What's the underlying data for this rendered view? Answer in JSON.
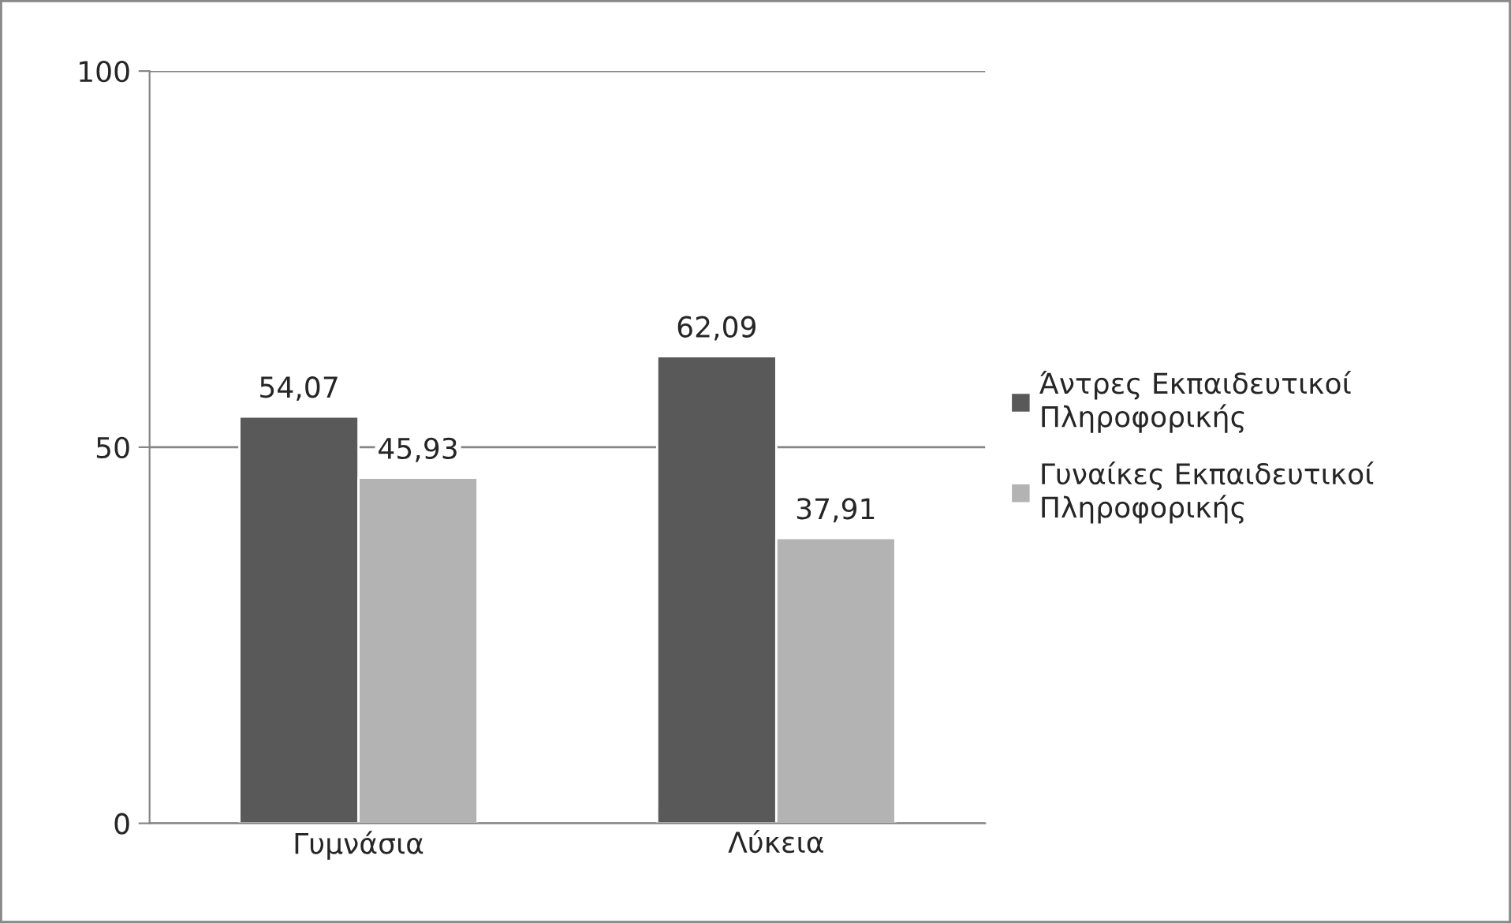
{
  "chart_data": {
    "type": "bar",
    "categories": [
      "Γυμνάσια",
      "Λύκεια"
    ],
    "series": [
      {
        "name": "Άντρες Εκπαιδευτικοί Πληροφορικής",
        "color": "#595959",
        "values": [
          54.07,
          62.09
        ],
        "value_labels": [
          "54,07",
          "62,09"
        ]
      },
      {
        "name": "Γυναίκες Εκπαιδευτικοί Πληροφορικής",
        "color": "#b3b3b3",
        "values": [
          45.93,
          37.91
        ],
        "value_labels": [
          "45,93",
          "37,91"
        ]
      }
    ],
    "ylim": [
      0,
      100
    ],
    "yticks": [
      0,
      50,
      100
    ],
    "grid": "y",
    "legend": "right"
  }
}
